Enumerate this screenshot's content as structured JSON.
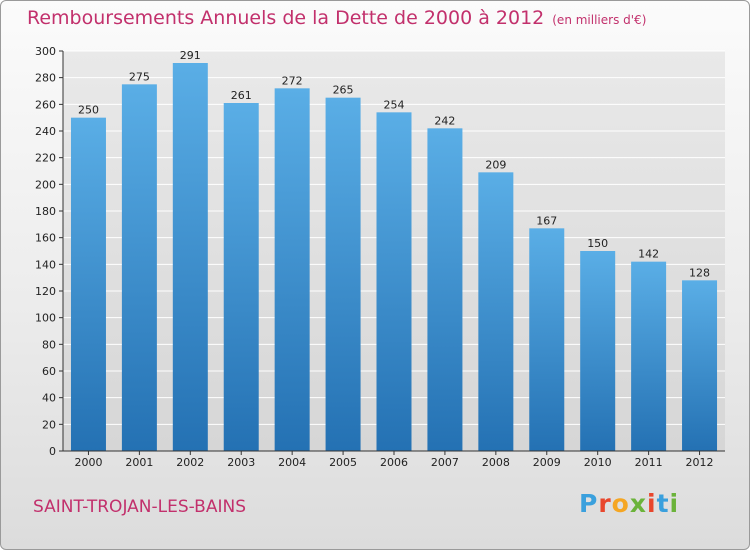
{
  "chart_data": {
    "type": "bar",
    "title": "Remboursements Annuels de la Dette de 2000 à 2012",
    "unit_note": "(en milliers d'€)",
    "categories": [
      "2000",
      "2001",
      "2002",
      "2003",
      "2004",
      "2005",
      "2006",
      "2007",
      "2008",
      "2009",
      "2010",
      "2011",
      "2012"
    ],
    "values": [
      250,
      275,
      291,
      261,
      272,
      265,
      254,
      242,
      209,
      167,
      150,
      142,
      128
    ],
    "ylim": [
      0,
      300
    ],
    "yticks": [
      0,
      20,
      40,
      60,
      80,
      100,
      120,
      140,
      160,
      180,
      200,
      220,
      240,
      260,
      280,
      300
    ],
    "grid": true,
    "bar_color_top": "#5aaee6",
    "bar_color_bottom": "#2471b3",
    "data_labels": true
  },
  "footer": {
    "commune": "SAINT-TROJAN-LES-BAINS",
    "brand": "Proxiti",
    "brand_colors": [
      "#3aa0dd",
      "#e8462c",
      "#f5a623",
      "#6bb33a",
      "#e8462c",
      "#3aa0dd",
      "#6bb33a"
    ]
  },
  "colors": {
    "title": "#c2306c",
    "grid": "#ffffff",
    "axis": "#333333"
  }
}
